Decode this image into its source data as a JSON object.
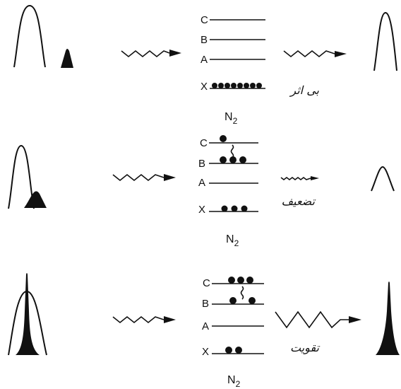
{
  "panels": [
    {
      "id": "no-effect",
      "molecule": "N",
      "molecule_subscript": "2",
      "caption_fa": "بی اثر",
      "levels": [
        {
          "label": "C",
          "dots": 0
        },
        {
          "label": "B",
          "dots": 0
        },
        {
          "label": "A",
          "dots": 0
        },
        {
          "label": "X",
          "dots": 8
        }
      ]
    },
    {
      "id": "attenuation",
      "molecule": "N",
      "molecule_subscript": "2",
      "caption_fa": "تضعیف",
      "levels": [
        {
          "label": "C",
          "dots": 1
        },
        {
          "label": "B",
          "dots": 3
        },
        {
          "label": "A",
          "dots": 0
        },
        {
          "label": "X",
          "dots": 3
        }
      ]
    },
    {
      "id": "amplification",
      "molecule": "N",
      "molecule_subscript": "2",
      "caption_fa": "تقویت",
      "levels": [
        {
          "label": "C",
          "dots": 3
        },
        {
          "label": "B",
          "dots": 2
        },
        {
          "label": "A",
          "dots": 0
        },
        {
          "label": "X",
          "dots": 2
        }
      ]
    }
  ],
  "colors": {
    "ink": "#111111",
    "background": "#ffffff"
  }
}
